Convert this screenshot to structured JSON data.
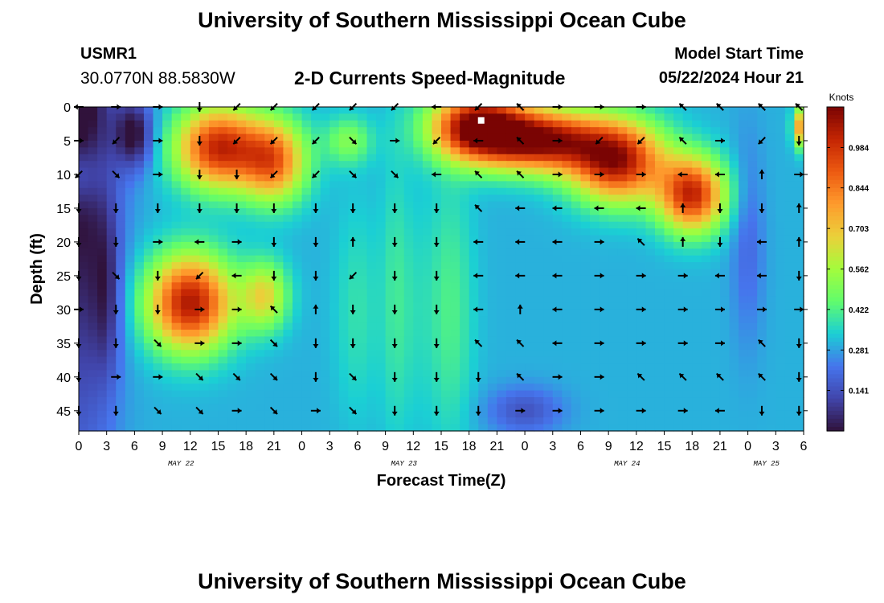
{
  "header": {
    "title": "University of Southern Mississippi Ocean Cube",
    "footer_title": "University of Southern Mississippi Ocean Cube",
    "station_id": "USMR1",
    "coordinates": "30.0770N  88.5830W",
    "model_start_label": "Model Start Time",
    "model_start_value": "05/22/2024 Hour 21"
  },
  "colors": {
    "colormap": [
      "#30123b",
      "#4145ab",
      "#4675ed",
      "#1bcfd4",
      "#61fc6c",
      "#a4fc3c",
      "#ebd03a",
      "#fe9b2d",
      "#ed5a11",
      "#c42503",
      "#7a0403"
    ]
  },
  "chart_data": {
    "type": "heatmap",
    "title": "2-D Currents Speed-Magnitude",
    "xlabel": "Forecast Time(Z)",
    "ylabel": "Depth (ft)",
    "x_unit": "hours from May 22 00Z",
    "xlim": [
      0,
      78
    ],
    "ylim": [
      0,
      48
    ],
    "xticks": [
      0,
      3,
      6,
      9,
      12,
      15,
      18,
      21,
      24,
      27,
      30,
      33,
      36,
      39,
      42,
      45,
      48,
      51,
      54,
      57,
      60,
      63,
      66,
      69,
      72,
      75,
      78
    ],
    "xtick_labels": [
      "0",
      "3",
      "6",
      "9",
      "12",
      "15",
      "18",
      "21",
      "0",
      "3",
      "6",
      "9",
      "12",
      "15",
      "18",
      "21",
      "0",
      "3",
      "6",
      "9",
      "12",
      "15",
      "18",
      "21",
      "0",
      "3",
      "6"
    ],
    "yticks": [
      0,
      5,
      10,
      15,
      20,
      25,
      30,
      35,
      40,
      45
    ],
    "ytick_labels": [
      "0",
      "5",
      "10",
      "15",
      "20",
      "25",
      "30",
      "35",
      "40",
      "45"
    ],
    "date_labels": [
      {
        "x": 11,
        "text": "MAY 22"
      },
      {
        "x": 35,
        "text": "MAY 23"
      },
      {
        "x": 59,
        "text": "MAY 24"
      },
      {
        "x": 74,
        "text": "MAY 25"
      }
    ],
    "colorbar": {
      "label": "Knots",
      "min": 0.0,
      "max": 1.125,
      "ticks": [
        0.141,
        0.281,
        0.422,
        0.562,
        0.703,
        0.844,
        0.984
      ],
      "tick_labels": [
        "0.141",
        "0.281",
        "0.422",
        "0.562",
        "0.703",
        "0.844",
        "0.984"
      ]
    },
    "current_time_marker": {
      "x": 43.3,
      "y": 2
    },
    "speed_blobs": [
      {
        "x": 0,
        "y": 0,
        "sx": 4,
        "sy": 48,
        "v": -0.35
      },
      {
        "x": 0,
        "y": 10,
        "sx": 2.5,
        "sy": 5,
        "v": 0.15
      },
      {
        "x": 6,
        "y": 4,
        "sx": 2,
        "sy": 5,
        "v": -0.3
      },
      {
        "x": 3,
        "y": 28,
        "sx": 1.5,
        "sy": 12,
        "v": -0.15
      },
      {
        "x": 15,
        "y": 6,
        "sx": 4.5,
        "sy": 6,
        "v": 0.7
      },
      {
        "x": 21,
        "y": 8,
        "sx": 3.5,
        "sy": 6,
        "v": 0.55
      },
      {
        "x": 29,
        "y": 5,
        "sx": 2.5,
        "sy": 3.5,
        "v": 0.2
      },
      {
        "x": 12,
        "y": 29,
        "sx": 4.5,
        "sy": 7,
        "v": 0.75
      },
      {
        "x": 20,
        "y": 28,
        "sx": 2.5,
        "sy": 5,
        "v": 0.35
      },
      {
        "x": 34,
        "y": 28,
        "sx": 1.5,
        "sy": 22,
        "v": 0.08
      },
      {
        "x": 40,
        "y": 30,
        "sx": 2.5,
        "sy": 20,
        "v": 0.12
      },
      {
        "x": 43,
        "y": 3,
        "sx": 5,
        "sy": 5,
        "v": 0.85
      },
      {
        "x": 50,
        "y": 5,
        "sx": 6,
        "sy": 4.5,
        "v": 0.75
      },
      {
        "x": 58,
        "y": 8,
        "sx": 5,
        "sy": 6,
        "v": 0.75
      },
      {
        "x": 66,
        "y": 13,
        "sx": 3.5,
        "sy": 5.5,
        "v": 0.7
      },
      {
        "x": 72,
        "y": 20,
        "sx": 1.8,
        "sy": 15,
        "v": -0.1
      },
      {
        "x": 77.5,
        "y": 3,
        "sx": 0.7,
        "sy": 3,
        "v": 0.45
      },
      {
        "x": 48,
        "y": 45,
        "sx": 4,
        "sy": 3.5,
        "v": -0.15
      },
      {
        "x": 36,
        "y": 30,
        "sx": 2,
        "sy": 18,
        "v": 0.05
      },
      {
        "x": 30,
        "y": 30,
        "sx": 2.5,
        "sy": 16,
        "v": 0.08
      }
    ],
    "vector_times": [
      0,
      4,
      8.5,
      13,
      17,
      21,
      25.5,
      29.5,
      34,
      38.5,
      43,
      47.5,
      51.5,
      56,
      60.5,
      65,
      69,
      73.5,
      77.5
    ],
    "vector_depths": [
      0,
      5,
      10,
      15,
      20,
      25,
      30,
      35,
      40,
      45
    ],
    "vector_angles_deg": [
      [
        180,
        0,
        0,
        90,
        135,
        135,
        135,
        135,
        135,
        180,
        135,
        225,
        0,
        0,
        0,
        225,
        225,
        225,
        225
      ],
      [
        0,
        135,
        0,
        90,
        135,
        135,
        135,
        45,
        0,
        135,
        180,
        225,
        0,
        135,
        135,
        225,
        0,
        135,
        90
      ],
      [
        135,
        45,
        0,
        90,
        90,
        135,
        135,
        45,
        45,
        180,
        225,
        225,
        0,
        0,
        0,
        180,
        180,
        270,
        0
      ],
      [
        90,
        90,
        90,
        90,
        90,
        90,
        90,
        90,
        90,
        90,
        225,
        180,
        180,
        180,
        180,
        270,
        90,
        90,
        270
      ],
      [
        90,
        90,
        0,
        180,
        0,
        90,
        90,
        270,
        90,
        90,
        180,
        180,
        180,
        0,
        225,
        270,
        90,
        180,
        270
      ],
      [
        90,
        45,
        90,
        135,
        180,
        90,
        90,
        135,
        90,
        90,
        180,
        180,
        180,
        0,
        0,
        0,
        180,
        180,
        90
      ],
      [
        0,
        90,
        90,
        0,
        0,
        225,
        270,
        90,
        90,
        90,
        180,
        270,
        180,
        0,
        0,
        0,
        0,
        0,
        0
      ],
      [
        90,
        90,
        45,
        0,
        0,
        45,
        90,
        90,
        90,
        90,
        225,
        225,
        180,
        0,
        0,
        0,
        0,
        225,
        90
      ],
      [
        90,
        0,
        0,
        45,
        45,
        45,
        90,
        45,
        90,
        90,
        90,
        225,
        0,
        0,
        225,
        225,
        225,
        225,
        90
      ],
      [
        90,
        90,
        45,
        45,
        0,
        45,
        0,
        45,
        90,
        90,
        90,
        0,
        0,
        0,
        0,
        0,
        180,
        90,
        90
      ]
    ]
  }
}
